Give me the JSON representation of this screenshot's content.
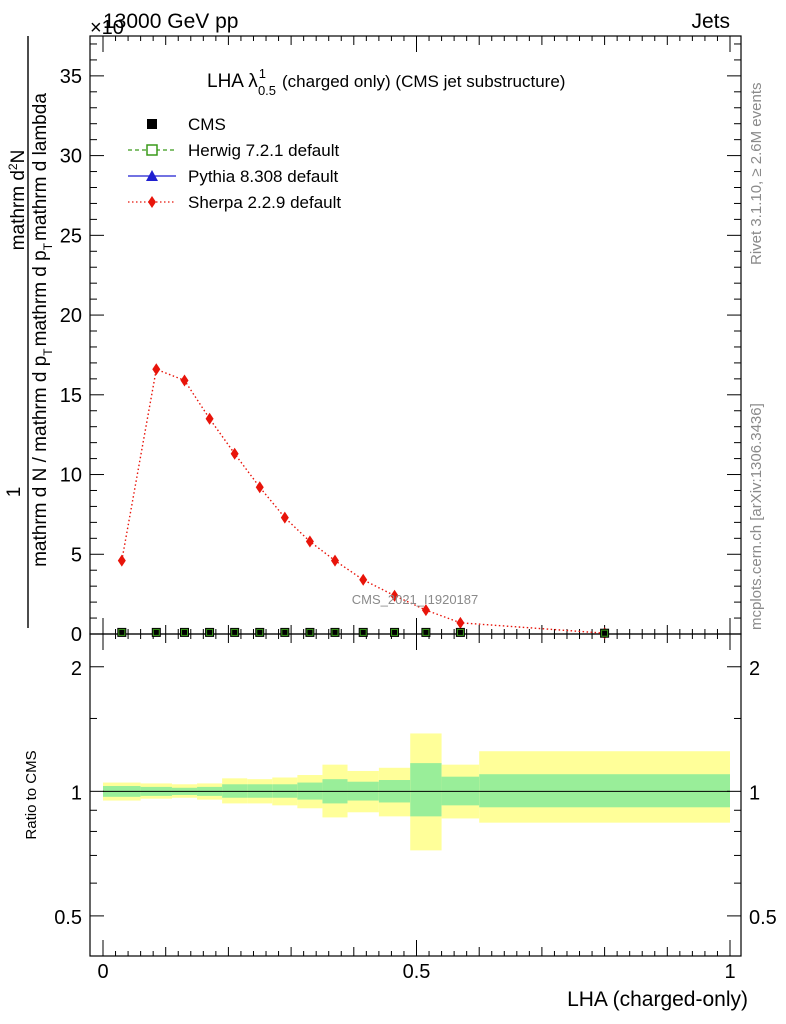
{
  "header": {
    "left": "13000 GeV pp",
    "right": "Jets",
    "scale_note": "×10"
  },
  "title": {
    "main": "LHA λ",
    "sup": "1",
    "sub": "0.5",
    "rest": "(charged only) (CMS jet substructure)"
  },
  "side_labels": {
    "rivet": "Rivet 3.1.10, ≥ 2.6M events",
    "mcplots": "mcplots.cern.ch [arXiv:1306.3436]"
  },
  "watermark": "CMS_2021_I1920187",
  "ylabel_main": {
    "num": "mathrm d",
    "num_sup": "2",
    "num_end": "N",
    "one": "1",
    "den": "mathrm d N / mathrm d p",
    "den_sub": "T",
    "den_end": "mathrm d p",
    "den_sub2": "T",
    "den_last": "mathrm d lambda"
  },
  "ylabel_ratio": "Ratio to CMS",
  "xlabel": "LHA (charged-only)",
  "legend": [
    {
      "label": "CMS",
      "color": "#000000",
      "marker": "filled-square"
    },
    {
      "label": "Herwig 7.2.1 default",
      "color": "#3a9a1a",
      "marker": "open-square"
    },
    {
      "label": "Pythia 8.308 default",
      "color": "#1f1fd0",
      "marker": "triangle"
    },
    {
      "label": "Sherpa 2.2.9 default",
      "color": "#e8140a",
      "marker": "diamond"
    }
  ],
  "chart_data": [
    {
      "type": "line",
      "panel": "main",
      "xlim": [
        0,
        1
      ],
      "ylim": [
        0,
        37.5
      ],
      "y_ticks": [
        "0",
        "5",
        "10",
        "15",
        "20",
        "25",
        "30",
        "35"
      ],
      "series": [
        {
          "name": "CMS",
          "x": [
            0.03,
            0.085,
            0.13,
            0.17,
            0.21,
            0.25,
            0.29,
            0.33,
            0.37,
            0.415,
            0.465,
            0.515,
            0.57,
            0.8
          ],
          "y": [
            0.1,
            0.1,
            0.1,
            0.1,
            0.1,
            0.1,
            0.1,
            0.1,
            0.1,
            0.1,
            0.1,
            0.1,
            0.1,
            0.05
          ]
        },
        {
          "name": "Sherpa 2.2.9 default",
          "x": [
            0.03,
            0.085,
            0.13,
            0.17,
            0.21,
            0.25,
            0.29,
            0.33,
            0.37,
            0.415,
            0.465,
            0.515,
            0.57,
            0.8
          ],
          "y": [
            4.6,
            16.6,
            15.9,
            13.5,
            11.3,
            9.2,
            7.3,
            5.8,
            4.6,
            3.4,
            2.4,
            1.5,
            0.7,
            0.05
          ]
        }
      ]
    },
    {
      "type": "area",
      "panel": "ratio",
      "xlim": [
        0,
        1
      ],
      "ylim": [
        0.4,
        2.4
      ],
      "y_ticks": [
        "0.5",
        "1",
        "2"
      ],
      "x_ticks": [
        "0",
        "0.5",
        "1"
      ],
      "bins": [
        {
          "lo": 0.0,
          "hi": 0.06,
          "inner": [
            0.97,
            1.03
          ],
          "outer": [
            0.95,
            1.05
          ]
        },
        {
          "lo": 0.06,
          "hi": 0.11,
          "inner": [
            0.975,
            1.025
          ],
          "outer": [
            0.96,
            1.045
          ]
        },
        {
          "lo": 0.11,
          "hi": 0.15,
          "inner": [
            0.98,
            1.02
          ],
          "outer": [
            0.965,
            1.04
          ]
        },
        {
          "lo": 0.15,
          "hi": 0.19,
          "inner": [
            0.975,
            1.025
          ],
          "outer": [
            0.955,
            1.045
          ]
        },
        {
          "lo": 0.19,
          "hi": 0.23,
          "inner": [
            0.965,
            1.04
          ],
          "outer": [
            0.935,
            1.075
          ]
        },
        {
          "lo": 0.23,
          "hi": 0.27,
          "inner": [
            0.965,
            1.04
          ],
          "outer": [
            0.935,
            1.07
          ]
        },
        {
          "lo": 0.27,
          "hi": 0.31,
          "inner": [
            0.965,
            1.04
          ],
          "outer": [
            0.925,
            1.08
          ]
        },
        {
          "lo": 0.31,
          "hi": 0.35,
          "inner": [
            0.955,
            1.05
          ],
          "outer": [
            0.91,
            1.095
          ]
        },
        {
          "lo": 0.35,
          "hi": 0.39,
          "inner": [
            0.935,
            1.07
          ],
          "outer": [
            0.865,
            1.16
          ]
        },
        {
          "lo": 0.39,
          "hi": 0.44,
          "inner": [
            0.95,
            1.055
          ],
          "outer": [
            0.89,
            1.12
          ]
        },
        {
          "lo": 0.44,
          "hi": 0.49,
          "inner": [
            0.94,
            1.065
          ],
          "outer": [
            0.87,
            1.14
          ]
        },
        {
          "lo": 0.49,
          "hi": 0.54,
          "inner": [
            0.87,
            1.17
          ],
          "outer": [
            0.72,
            1.38
          ]
        },
        {
          "lo": 0.54,
          "hi": 0.6,
          "inner": [
            0.925,
            1.085
          ],
          "outer": [
            0.86,
            1.16
          ]
        },
        {
          "lo": 0.6,
          "hi": 1.0,
          "inner": [
            0.915,
            1.1
          ],
          "outer": [
            0.84,
            1.25
          ]
        }
      ]
    }
  ]
}
